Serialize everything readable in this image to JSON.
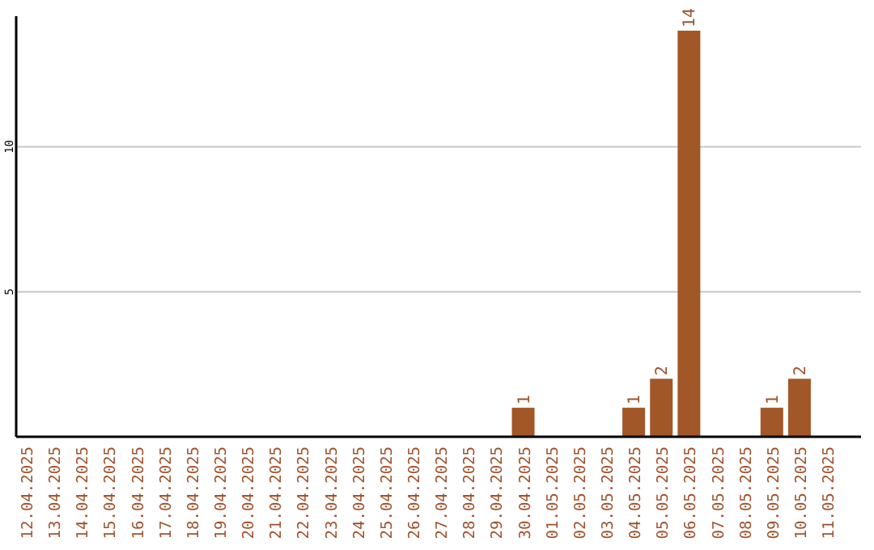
{
  "chart_data": {
    "type": "bar",
    "categories": [
      "12.04.2025",
      "13.04.2025",
      "14.04.2025",
      "15.04.2025",
      "16.04.2025",
      "17.04.2025",
      "18.04.2025",
      "19.04.2025",
      "20.04.2025",
      "21.04.2025",
      "22.04.2025",
      "23.04.2025",
      "24.04.2025",
      "25.04.2025",
      "26.04.2025",
      "27.04.2025",
      "28.04.2025",
      "29.04.2025",
      "30.04.2025",
      "01.05.2025",
      "02.05.2025",
      "03.05.2025",
      "04.05.2025",
      "05.05.2025",
      "06.05.2025",
      "07.05.2025",
      "08.05.2025",
      "09.05.2025",
      "10.05.2025",
      "11.05.2025"
    ],
    "values": [
      0,
      0,
      0,
      0,
      0,
      0,
      0,
      0,
      0,
      0,
      0,
      0,
      0,
      0,
      0,
      0,
      0,
      0,
      1,
      0,
      0,
      0,
      1,
      2,
      14,
      0,
      0,
      1,
      2,
      0
    ],
    "value_labels": [
      null,
      null,
      null,
      null,
      null,
      null,
      null,
      null,
      null,
      null,
      null,
      null,
      null,
      null,
      null,
      null,
      null,
      null,
      "1",
      null,
      null,
      null,
      "1",
      "2",
      "14",
      null,
      null,
      "1",
      "2",
      null
    ],
    "color": "#a15727",
    "ylim": [
      0,
      14.5
    ],
    "yticks": [
      5,
      10
    ],
    "grid": "y"
  }
}
